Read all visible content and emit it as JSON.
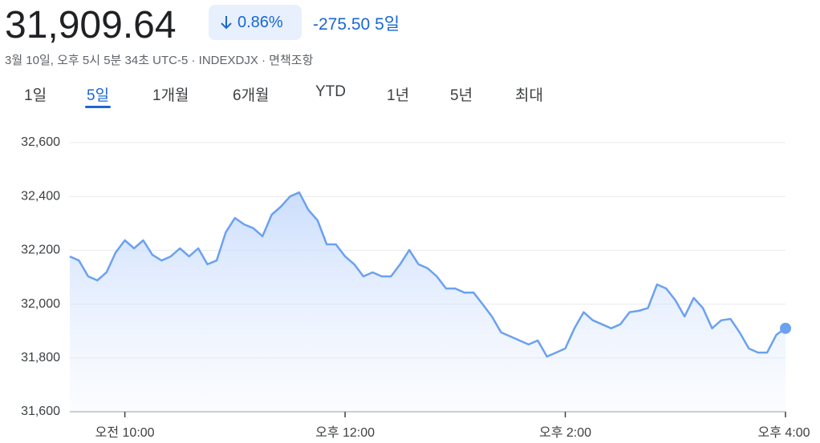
{
  "header": {
    "price": "31,909.64",
    "change_percent": "0.86%",
    "change": "-275.50",
    "period": "5일",
    "subtitle": "3월 10일, 오후 5시 5분 34초 UTC-5 · INDEXDJX · 면책조항"
  },
  "tabs": {
    "items": [
      "1일",
      "5일",
      "1개월",
      "6개월",
      "YTD",
      "1년",
      "5년",
      "최대"
    ],
    "selected": 1
  },
  "chart_data": {
    "type": "line",
    "color": "#6ba1f0",
    "grid": true,
    "x": [
      570,
      575,
      580,
      585,
      590,
      595,
      600,
      605,
      610,
      615,
      620,
      625,
      630,
      635,
      640,
      645,
      650,
      655,
      660,
      665,
      670,
      675,
      680,
      685,
      690,
      695,
      700,
      705,
      710,
      715,
      720,
      725,
      730,
      735,
      740,
      745,
      750,
      755,
      760,
      765,
      770,
      775,
      780,
      785,
      790,
      795,
      800,
      805,
      810,
      815,
      820,
      825,
      830,
      835,
      840,
      845,
      850,
      855,
      860,
      865,
      870,
      875,
      880,
      885,
      890,
      895,
      900,
      905,
      910,
      915,
      920,
      925,
      930,
      935,
      940,
      945,
      950,
      955,
      960
    ],
    "values": [
      32177,
      32162,
      32103,
      32088,
      32118,
      32192,
      32237,
      32207,
      32237,
      32183,
      32162,
      32177,
      32207,
      32177,
      32207,
      32148,
      32162,
      32267,
      32320,
      32296,
      32282,
      32252,
      32332,
      32362,
      32400,
      32415,
      32350,
      32311,
      32222,
      32222,
      32177,
      32148,
      32103,
      32118,
      32103,
      32103,
      32148,
      32201,
      32148,
      32133,
      32103,
      32058,
      32058,
      32043,
      32043,
      31999,
      31954,
      31895,
      31880,
      31865,
      31850,
      31865,
      31805,
      31820,
      31835,
      31910,
      31970,
      31940,
      31925,
      31910,
      31925,
      31970,
      31975,
      31985,
      32073,
      32058,
      32014,
      31954,
      32023,
      31985,
      31910,
      31940,
      31945,
      31895,
      31835,
      31820,
      31820,
      31886,
      31910
    ],
    "xlim": [
      570,
      960
    ],
    "xticks": [
      {
        "value": 600,
        "label": "오전 10:00"
      },
      {
        "value": 720,
        "label": "오후 12:00"
      },
      {
        "value": 840,
        "label": "오후 2:00"
      },
      {
        "value": 960,
        "label": "오후 4:00"
      }
    ],
    "ylim": [
      31600,
      32600
    ],
    "yticks": [
      {
        "value": 31600,
        "label": "31,600"
      },
      {
        "value": 31800,
        "label": "31,800"
      },
      {
        "value": 32000,
        "label": "32,000"
      },
      {
        "value": 32200,
        "label": "32,200"
      },
      {
        "value": 32400,
        "label": "32,400"
      },
      {
        "value": 32600,
        "label": "32,600"
      }
    ]
  }
}
